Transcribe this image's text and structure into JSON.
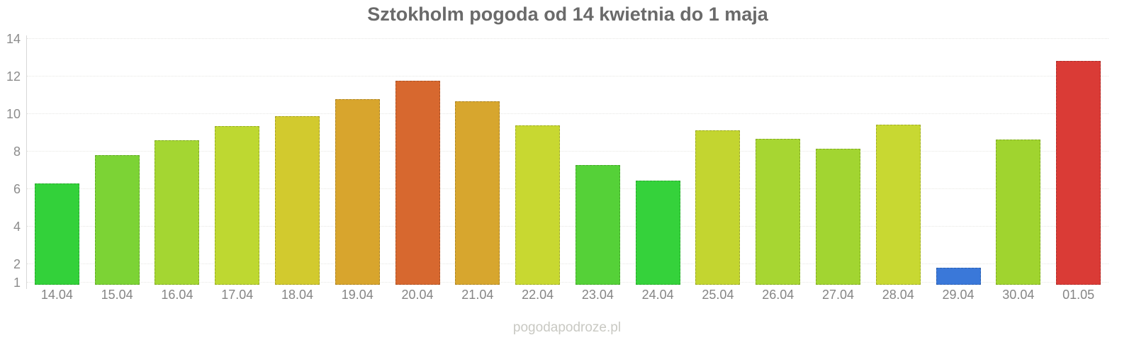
{
  "chart_data": {
    "type": "bar",
    "title": "Sztokholm pogoda od 14 kwietnia do 1 maja",
    "categories": [
      "14.04",
      "15.04",
      "16.04",
      "17.04",
      "18.04",
      "19.04",
      "20.04",
      "21.04",
      "22.04",
      "23.04",
      "24.04",
      "25.04",
      "26.04",
      "27.04",
      "28.04",
      "29.04",
      "30.04",
      "01.05"
    ],
    "values": [
      6.3,
      7.8,
      8.6,
      9.35,
      9.9,
      10.8,
      11.8,
      10.7,
      9.4,
      7.3,
      6.45,
      9.15,
      8.7,
      8.15,
      9.45,
      1.8,
      8.65,
      12.85
    ],
    "bar_colors": [
      "#33d13a",
      "#7cd335",
      "#a4d632",
      "#bed831",
      "#d2ca2e",
      "#d8a52d",
      "#d7682f",
      "#d7a62e",
      "#c8d831",
      "#55d138",
      "#35d23b",
      "#c3d530",
      "#a7d632",
      "#a2d531",
      "#c8d832",
      "#3a78d9",
      "#a0d42f",
      "#da3b36"
    ],
    "xlabel": "",
    "ylabel": "",
    "y_ticks": [
      1,
      2,
      4,
      6,
      8,
      10,
      12,
      14
    ],
    "ylim": [
      0.9,
      14.2
    ],
    "grid": "horizontal-dotted",
    "legend": "none"
  },
  "watermark": {
    "text": "pogodapodroze.pl"
  },
  "colors": {
    "background": "#ffffff",
    "title_text": "#6a6a6a",
    "axis_line": "#d7d7d7",
    "gridline": "#e7e7e3",
    "y_tick_label": "#8c8c8c",
    "x_tick_label": "#858585",
    "watermark_text": "#c9c9c3"
  }
}
